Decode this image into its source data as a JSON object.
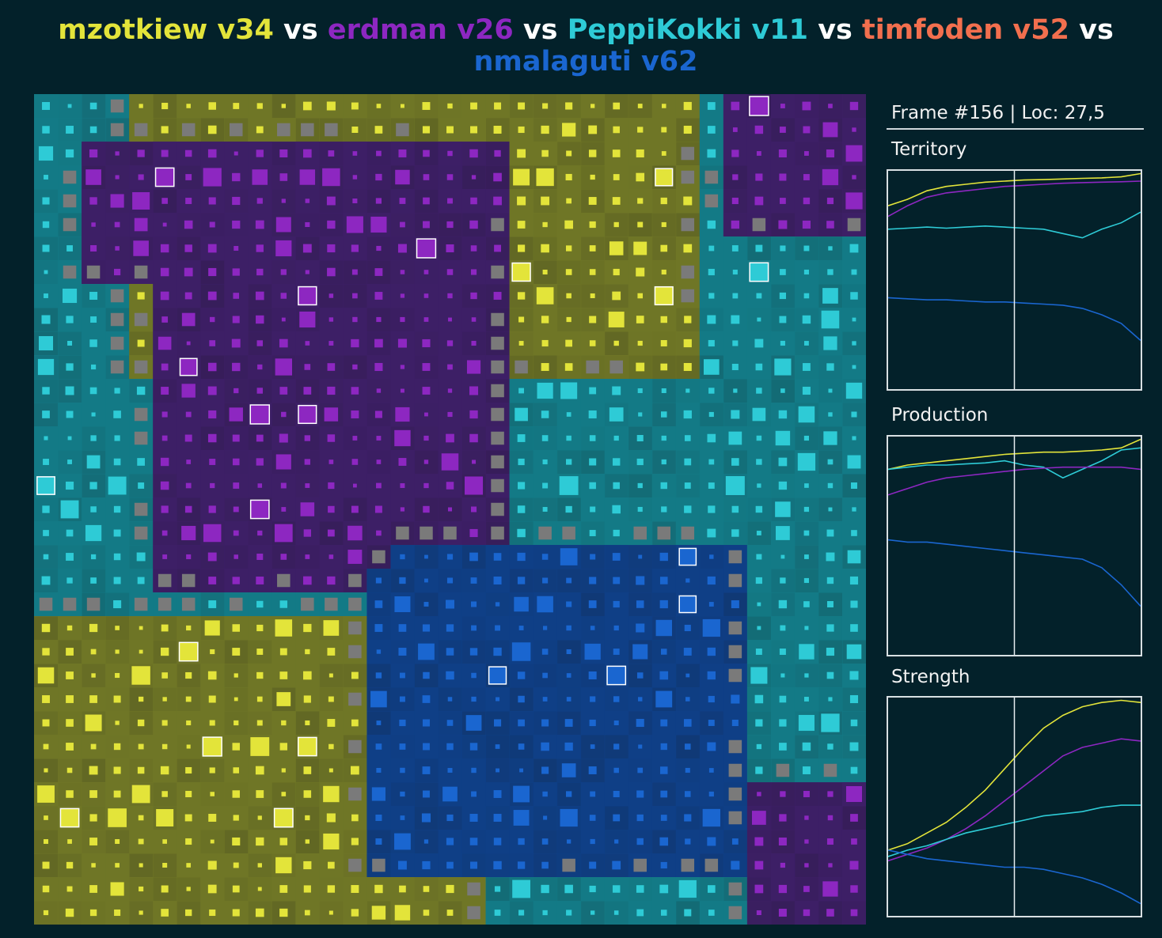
{
  "title": {
    "players": [
      {
        "name": "mzotkiew v34",
        "color": "#e3e43a"
      },
      {
        "name": "erdman v26",
        "color": "#8d27c1"
      },
      {
        "name": "PeppiKokki v11",
        "color": "#2ecbd6"
      },
      {
        "name": "timfoden v52",
        "color": "#f26f4e"
      },
      {
        "name": "nmalaguti v62",
        "color": "#1a66d0"
      }
    ],
    "separator": "vs"
  },
  "status": {
    "frame_text": "Frame #156 | Loc: 27,5"
  },
  "stats": [
    {
      "label": "Territory"
    },
    {
      "label": "Production"
    },
    {
      "label": "Strength"
    }
  ],
  "map": {
    "cols": 35,
    "rows": 35,
    "neutral_color": "#7a7a7a"
  },
  "chart_data": [
    {
      "type": "line",
      "title": "Territory",
      "series_colors": [
        "#e3e43a",
        "#8d27c1",
        "#2ecbd6",
        "#1a66d0"
      ],
      "series": [
        {
          "color": "#e3e43a",
          "values": [
            0.85,
            0.88,
            0.92,
            0.94,
            0.95,
            0.96,
            0.965,
            0.97,
            0.972,
            0.975,
            0.978,
            0.98,
            0.985,
            1.0
          ]
        },
        {
          "color": "#8d27c1",
          "values": [
            0.8,
            0.85,
            0.89,
            0.91,
            0.92,
            0.93,
            0.94,
            0.945,
            0.95,
            0.955,
            0.958,
            0.96,
            0.962,
            0.965
          ]
        },
        {
          "color": "#2ecbd6",
          "values": [
            0.74,
            0.745,
            0.75,
            0.745,
            0.75,
            0.755,
            0.75,
            0.745,
            0.74,
            0.72,
            0.7,
            0.74,
            0.77,
            0.82
          ]
        },
        {
          "color": "#1a66d0",
          "values": [
            0.42,
            0.415,
            0.41,
            0.41,
            0.405,
            0.4,
            0.4,
            0.395,
            0.39,
            0.385,
            0.37,
            0.34,
            0.3,
            0.22
          ]
        }
      ],
      "cursor_fraction": 0.5
    },
    {
      "type": "line",
      "title": "Production",
      "series": [
        {
          "color": "#e3e43a",
          "values": [
            0.86,
            0.88,
            0.89,
            0.9,
            0.91,
            0.92,
            0.93,
            0.935,
            0.94,
            0.94,
            0.945,
            0.95,
            0.96,
            1.0
          ]
        },
        {
          "color": "#2ecbd6",
          "values": [
            0.86,
            0.87,
            0.88,
            0.88,
            0.885,
            0.89,
            0.9,
            0.88,
            0.87,
            0.82,
            0.86,
            0.9,
            0.95,
            0.96
          ]
        },
        {
          "color": "#8d27c1",
          "values": [
            0.74,
            0.77,
            0.8,
            0.82,
            0.83,
            0.84,
            0.85,
            0.86,
            0.865,
            0.87,
            0.87,
            0.87,
            0.87,
            0.86
          ]
        },
        {
          "color": "#1a66d0",
          "values": [
            0.53,
            0.52,
            0.52,
            0.51,
            0.5,
            0.49,
            0.48,
            0.47,
            0.46,
            0.45,
            0.44,
            0.4,
            0.32,
            0.22
          ]
        }
      ],
      "cursor_fraction": 0.5
    },
    {
      "type": "line",
      "title": "Strength",
      "series": [
        {
          "color": "#e3e43a",
          "values": [
            0.3,
            0.33,
            0.38,
            0.43,
            0.5,
            0.58,
            0.68,
            0.78,
            0.87,
            0.93,
            0.97,
            0.99,
            1.0,
            0.99
          ]
        },
        {
          "color": "#8d27c1",
          "values": [
            0.25,
            0.28,
            0.31,
            0.35,
            0.4,
            0.46,
            0.53,
            0.6,
            0.67,
            0.74,
            0.78,
            0.8,
            0.82,
            0.81
          ]
        },
        {
          "color": "#2ecbd6",
          "values": [
            0.27,
            0.3,
            0.32,
            0.35,
            0.38,
            0.4,
            0.42,
            0.44,
            0.46,
            0.47,
            0.48,
            0.5,
            0.51,
            0.51
          ]
        },
        {
          "color": "#1a66d0",
          "values": [
            0.3,
            0.28,
            0.26,
            0.25,
            0.24,
            0.23,
            0.22,
            0.22,
            0.21,
            0.19,
            0.17,
            0.14,
            0.1,
            0.05
          ]
        }
      ],
      "cursor_fraction": 0.5
    }
  ]
}
